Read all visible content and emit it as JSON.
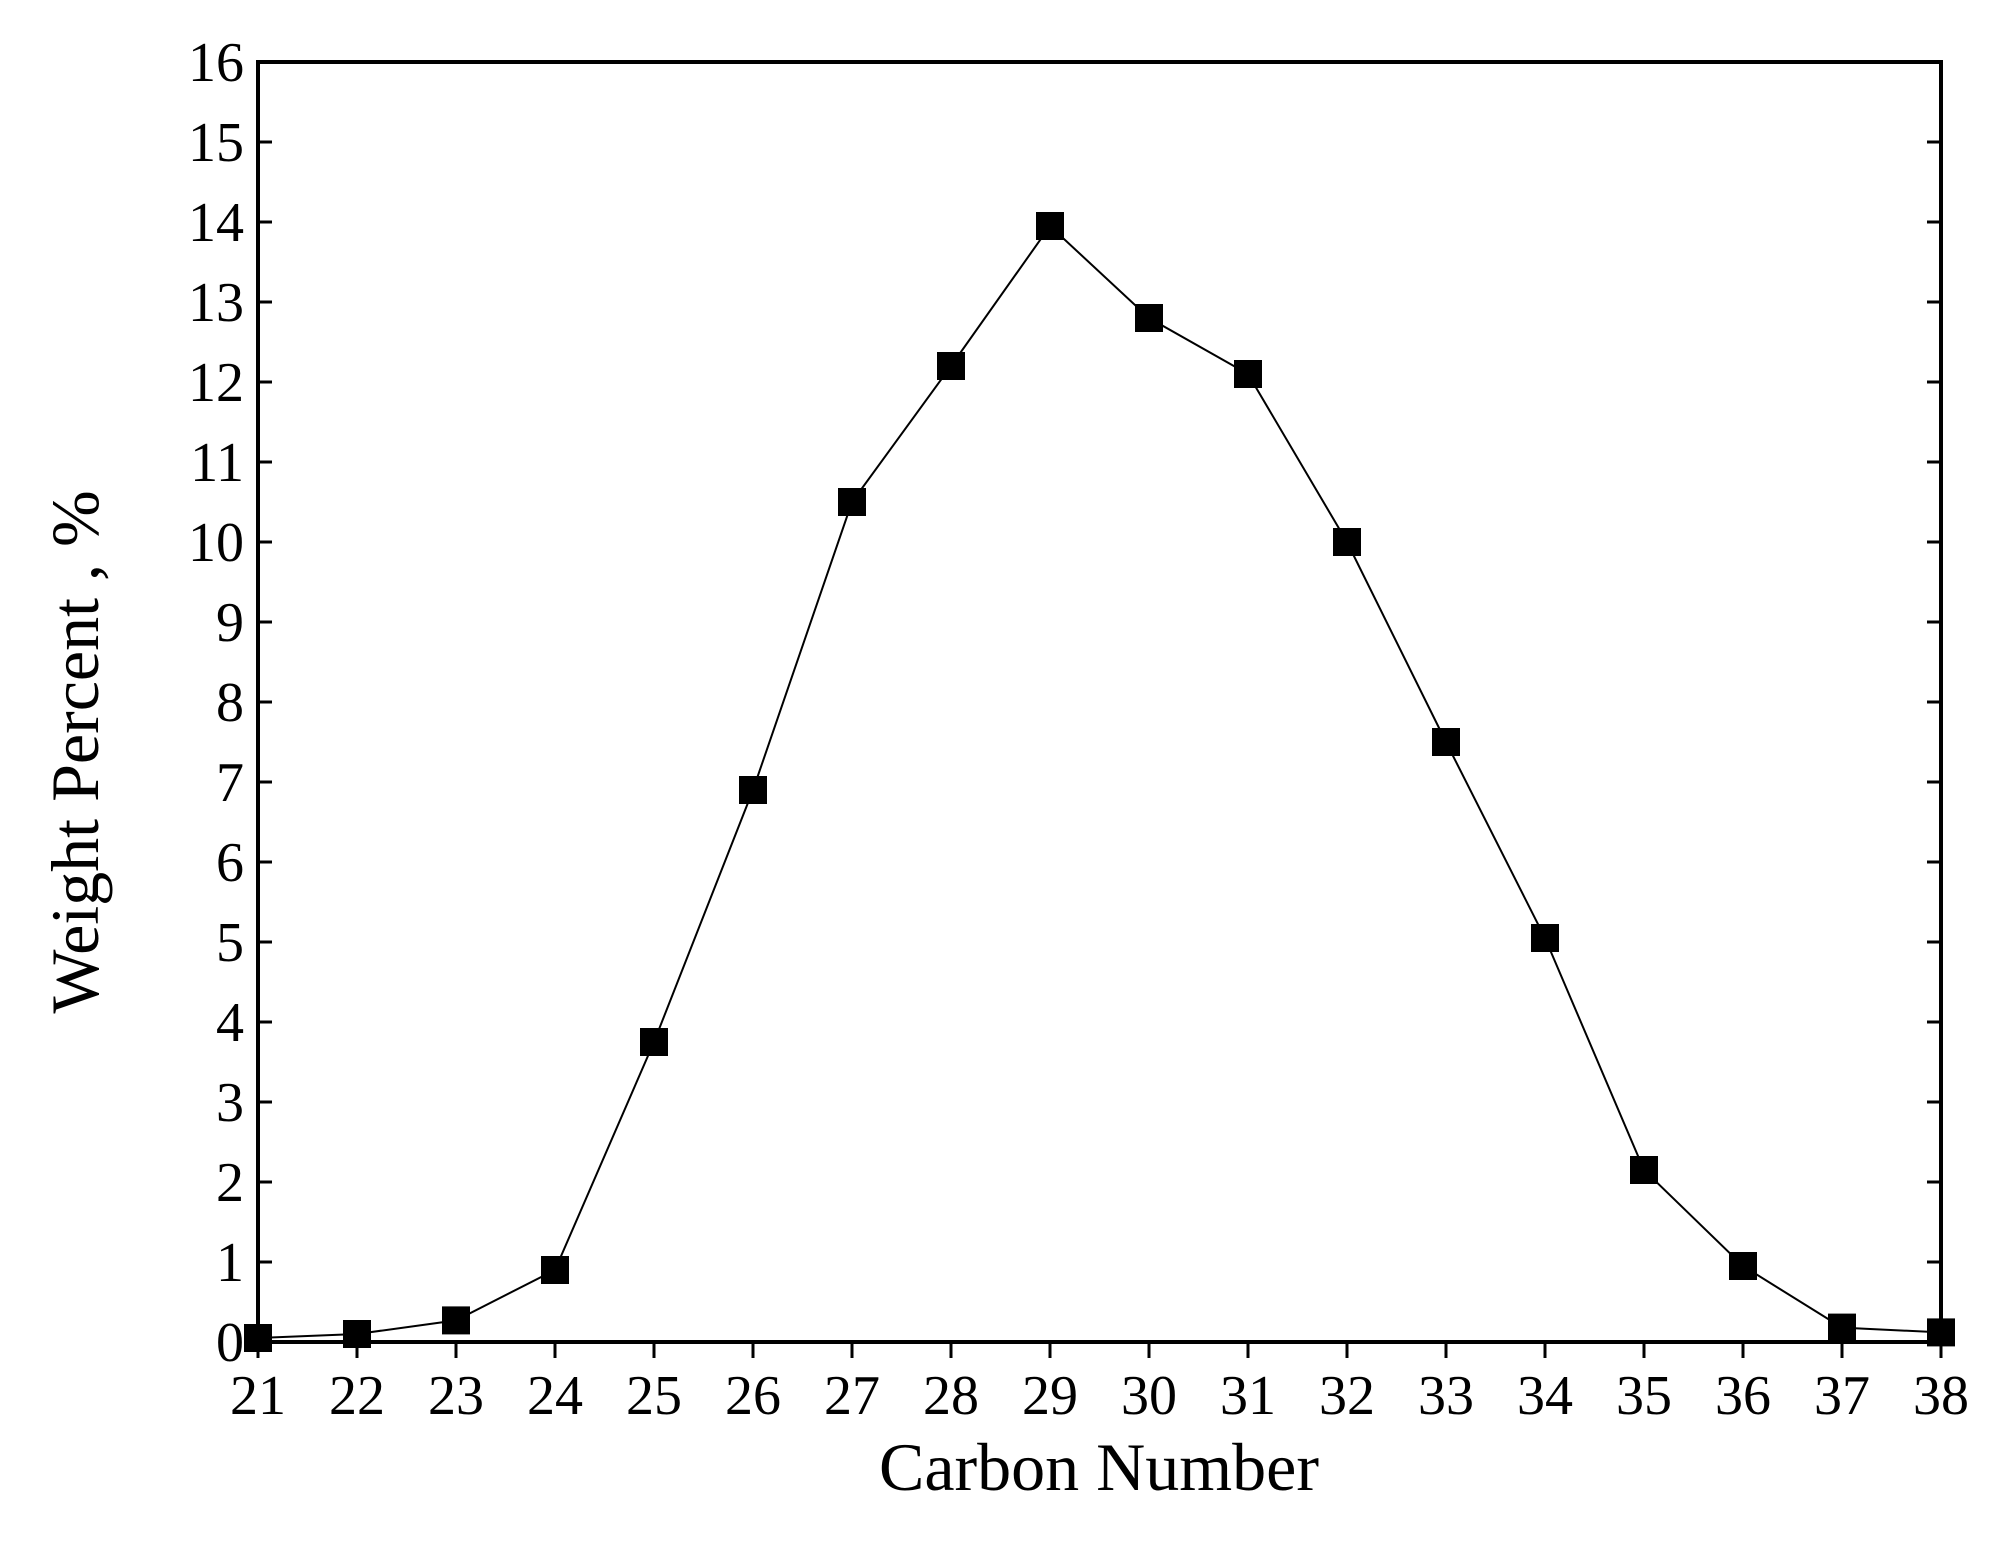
{
  "chart_data": {
    "type": "line",
    "x_label": "Carbon Number",
    "y_label": "Weight Percent , %",
    "x": [
      21,
      22,
      23,
      24,
      25,
      26,
      27,
      28,
      29,
      30,
      31,
      32,
      33,
      34,
      35,
      36,
      37,
      38
    ],
    "series": [
      {
        "color": "#000000",
        "values": [
          0.05,
          0.1,
          0.27,
          0.9,
          3.75,
          6.9,
          10.5,
          12.2,
          13.95,
          12.8,
          12.1,
          10.0,
          7.5,
          5.05,
          2.15,
          0.95,
          0.18,
          0.12
        ]
      }
    ],
    "xlim": [
      21,
      38
    ],
    "xticks": [
      21,
      22,
      23,
      24,
      25,
      26,
      27,
      28,
      29,
      30,
      31,
      32,
      33,
      34,
      35,
      36,
      37,
      38
    ],
    "ylim": [
      0,
      16
    ],
    "yticks": [
      0,
      1,
      2,
      3,
      4,
      5,
      6,
      7,
      8,
      9,
      10,
      11,
      12,
      13,
      14,
      15,
      16
    ],
    "grid": false
  }
}
